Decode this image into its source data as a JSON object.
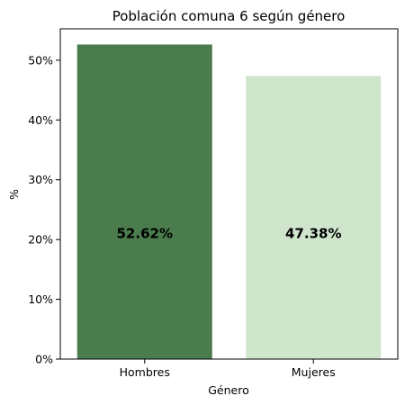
{
  "chart_data": {
    "type": "bar",
    "title": "Población comuna 6 según género",
    "xlabel": "Género",
    "ylabel": "%",
    "categories": [
      "Hombres",
      "Mujeres"
    ],
    "values": [
      52.62,
      47.38
    ],
    "data_labels": [
      "52.62%",
      "47.38%"
    ],
    "bar_colors": [
      "#4a7c4d",
      "#cfe6cd"
    ],
    "ylim": [
      0,
      55.25
    ],
    "yticks": [
      0,
      10,
      20,
      30,
      40,
      50
    ],
    "ytick_labels": [
      "0%",
      "10%",
      "20%",
      "30%",
      "40%",
      "50%"
    ],
    "grid": false,
    "legend": "none"
  }
}
